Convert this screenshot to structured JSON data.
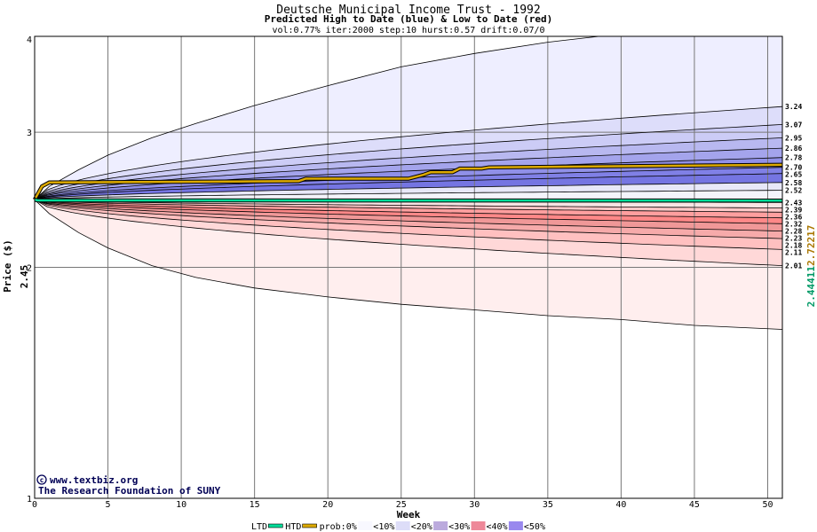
{
  "chart_data": {
    "type": "area",
    "title": "Deutsche Municipal Income Trust - 1992",
    "subtitle": "Predicted High to Date (blue) &  Low to Date (red)",
    "params": "vol:0.77% iter:2000 step:10 hurst:0.57 drift:0.07/0",
    "xlabel": "Week",
    "ylabel": "Price ($)",
    "xlim": [
      0,
      51
    ],
    "ylim": [
      1,
      4
    ],
    "y_scale": "log",
    "x_ticks": [
      0,
      5,
      10,
      15,
      20,
      25,
      30,
      35,
      40,
      45,
      50
    ],
    "y_ticks": [
      1,
      2,
      3,
      4
    ],
    "start_price_label": "2.45",
    "right_labels": [
      {
        "text": "2.44411",
        "color": "#009966"
      },
      {
        "text": "2.72217",
        "color": "#aa7700"
      }
    ],
    "grid": true,
    "high_quantiles_end": [
      3.24,
      3.07,
      2.95,
      2.86,
      2.78,
      2.7,
      2.65,
      2.58,
      2.52
    ],
    "low_quantiles_end": [
      2.43,
      2.39,
      2.36,
      2.32,
      2.28,
      2.23,
      2.18,
      2.11,
      2.01
    ],
    "end_labels": [
      "3.24",
      "3.07",
      "2.95",
      "2.86",
      "2.78",
      "2.70",
      "2.65",
      "2.58",
      "2.52",
      "2.43",
      "2.39",
      "2.36",
      "2.32",
      "2.28",
      "2.23",
      "2.18",
      "2.11",
      "2.01"
    ],
    "series": [
      {
        "name": "HTD",
        "x": [
          0,
          0.5,
          1,
          18,
          18.5,
          25.5,
          26.5,
          27,
          28.5,
          29,
          30.5,
          31,
          51
        ],
        "values": [
          2.45,
          2.55,
          2.58,
          2.59,
          2.61,
          2.61,
          2.64,
          2.66,
          2.66,
          2.69,
          2.69,
          2.7,
          2.72
        ]
      },
      {
        "name": "LTD",
        "x": [
          0,
          0.2,
          51
        ],
        "values": [
          2.45,
          2.445,
          2.444
        ]
      }
    ],
    "legend": {
      "items": [
        "LTD",
        "HTD",
        "prob:0%",
        "<10%",
        "<20%",
        "<30%",
        "<40%",
        "<50%"
      ],
      "colors": {
        "LTD": "#00dd99",
        "HTD": "#ddaa00",
        "<10%": "#f8f8ff",
        "<20%": "#ddddf8",
        "<30%": "#bbaadd",
        "<40%": "#ee8899",
        "<50%": "#9988ee"
      }
    }
  },
  "credits": {
    "website": "www.textbiz.org",
    "organization": "The Research Foundation of SUNY"
  },
  "colors": {
    "plot_bg": "#ffffff",
    "grid": "#777777",
    "band_line": "#000000",
    "high_line": "#ddaa00",
    "low_line": "#00dd99",
    "blue_shades": [
      "#eeeeff",
      "#ddddfa",
      "#ccccf6",
      "#b8b8f0",
      "#a4a4ec",
      "#9090e8",
      "#8080e6",
      "#7575e2",
      "#e8e8f8"
    ],
    "red_shades": [
      "#ffeeee",
      "#ffd8d8",
      "#ffc0c0",
      "#f6aaaa",
      "#f09898",
      "#ff8888",
      "#ff9f9f",
      "#ffc8c8",
      "#f8e4e4"
    ]
  }
}
